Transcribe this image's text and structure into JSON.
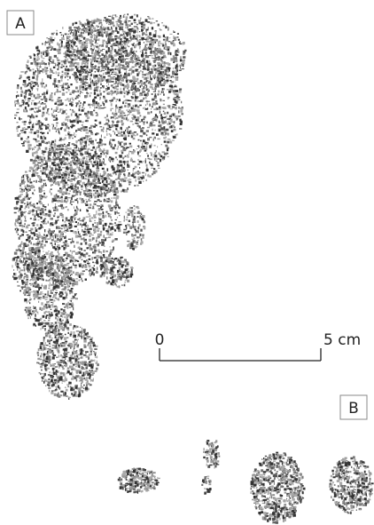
{
  "panels": [
    {
      "label": "A"
    },
    {
      "label": "B"
    }
  ],
  "scale_bar": {
    "start_label": "0",
    "end_label": "5 cm"
  }
}
